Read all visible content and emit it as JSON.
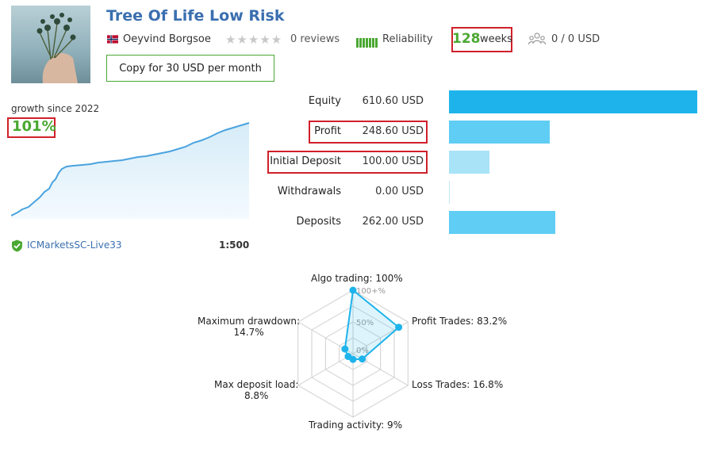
{
  "header": {
    "title": "Tree Of Life Low Risk",
    "author": "Oeyvind Borgsoe",
    "reviews": "0 reviews",
    "reliability_label": "Reliability",
    "weeks_value": "128",
    "weeks_label": "weeks",
    "subscribers": "0 / 0 USD",
    "copy_button": "Copy for 30 USD per month"
  },
  "growth": {
    "label": "growth since 2022",
    "value": "101%",
    "line_color": "#4aa3df"
  },
  "broker": {
    "name": "ICMarketsSC-Live33",
    "leverage": "1:500"
  },
  "financials": [
    {
      "label": "Equity",
      "value": "610.60 USD",
      "amount": 610.6,
      "color": "#1eb4eb"
    },
    {
      "label": "Profit",
      "value": "248.60 USD",
      "amount": 248.6,
      "color": "#5fcdf4"
    },
    {
      "label": "Initial Deposit",
      "value": "100.00 USD",
      "amount": 100.0,
      "color": "#a8e3f8"
    },
    {
      "label": "Withdrawals",
      "value": "0.00 USD",
      "amount": 0.0,
      "color": "#5fcdf4"
    },
    {
      "label": "Deposits",
      "value": "262.00 USD",
      "amount": 262.0,
      "color": "#5fcdf4"
    }
  ],
  "radar": {
    "axes": [
      {
        "label": "Algo trading: 100%",
        "value": 100
      },
      {
        "label": "Profit Trades: 83.2%",
        "value": 83.2
      },
      {
        "label": "Loss Trades: 16.8%",
        "value": 16.8
      },
      {
        "label": "Trading activity: 9%",
        "value": 9
      },
      {
        "label_line1": "Max deposit load:",
        "label_line2": "8.8%",
        "value": 8.8
      },
      {
        "label_line1": "Maximum drawdown:",
        "label_line2": "14.7%",
        "value": 14.7
      }
    ],
    "scale_labels": [
      "100+%",
      "50%",
      "0%"
    ],
    "color": "#1eb4eb"
  },
  "colors": {
    "accent_green": "#4aa832",
    "link_blue": "#3a6fb0",
    "highlight_red": "#d0202a"
  }
}
